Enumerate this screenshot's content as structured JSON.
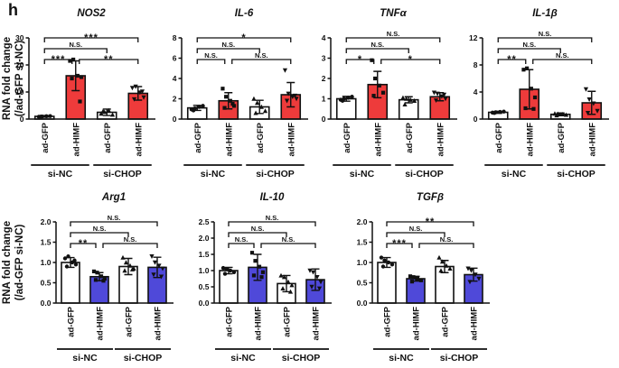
{
  "panel_label": "h",
  "row_ylabel": {
    "line1": "RNA fold change",
    "line2": "(/ad-GFP si-NC)"
  },
  "x_axis": {
    "bar_labels": [
      "ad-GFP",
      "ad-HIMF",
      "ad-GFP",
      "ad-HIMF"
    ],
    "group_labels": [
      "si-NC",
      "si-CHOP"
    ]
  },
  "colors": {
    "control_bar": "#ffffff",
    "row1_accent": "#ee3b3b",
    "row2_accent": "#4f49d9",
    "axis": "#111111"
  },
  "markers": [
    "circle-icon",
    "square-icon",
    "triangle-up-icon",
    "triangle-down-icon"
  ],
  "chart_data": [
    {
      "type": "bar",
      "title": "NOS2",
      "row": 1,
      "ylabel": "RNA fold change (/ad-GFP si-NC)",
      "categories": [
        "ad-GFP si-NC",
        "ad-HIMF si-NC",
        "ad-GFP si-CHOP",
        "ad-HIMF si-CHOP"
      ],
      "values": [
        1.0,
        16.0,
        2.5,
        9.5
      ],
      "errors": [
        0.3,
        5.5,
        1.2,
        2.5
      ],
      "points": [
        [
          0.85,
          0.95,
          1.05,
          1.1,
          0.9
        ],
        [
          21.5,
          22,
          16,
          15.5,
          15,
          6.5
        ],
        [
          2.0,
          2.6,
          3.2,
          1.6,
          2.9
        ],
        [
          11.5,
          12,
          9.8,
          8,
          7.3,
          10.2
        ]
      ],
      "bar_fills": [
        "#ffffff",
        "#ee3b3b",
        "#ffffff",
        "#ee3b3b"
      ],
      "ylim": [
        0,
        30
      ],
      "yticks": [
        0,
        10,
        20,
        30
      ],
      "ytick_labels": [
        "0",
        "10",
        "20",
        "30"
      ],
      "significance": [
        {
          "from": 0,
          "to": 1,
          "label": "***",
          "level": 1
        },
        {
          "from": 1,
          "to": 3,
          "label": "**",
          "level": 1
        },
        {
          "from": 0,
          "to": 2,
          "label": "N.S.",
          "level": 2
        },
        {
          "from": 0,
          "to": 3,
          "label": "***",
          "level": 3
        }
      ]
    },
    {
      "type": "bar",
      "title": "IL-6",
      "row": 1,
      "categories": [
        "ad-GFP si-NC",
        "ad-HIMF si-NC",
        "ad-GFP si-CHOP",
        "ad-HIMF si-CHOP"
      ],
      "values": [
        1.1,
        1.8,
        1.2,
        2.4
      ],
      "errors": [
        0.25,
        0.8,
        0.65,
        1.2
      ],
      "points": [
        [
          0.95,
          1.05,
          1.2,
          1.3,
          0.85
        ],
        [
          3.0,
          2.2,
          1.8,
          1.3,
          1.1,
          1.5
        ],
        [
          2.0,
          1.6,
          1.2,
          0.8,
          0.6
        ],
        [
          4.8,
          2.5,
          2.2,
          2.0,
          1.8,
          2.3
        ]
      ],
      "bar_fills": [
        "#ffffff",
        "#ee3b3b",
        "#ffffff",
        "#ee3b3b"
      ],
      "ylim": [
        0,
        8
      ],
      "yticks": [
        0,
        2,
        4,
        6,
        8
      ],
      "ytick_labels": [
        "0",
        "2",
        "4",
        "6",
        "8"
      ],
      "significance": [
        {
          "from": 0,
          "to": 1,
          "label": "N.S.",
          "level": 1
        },
        {
          "from": 1,
          "to": 3,
          "label": "N.S.",
          "level": 1
        },
        {
          "from": 0,
          "to": 2,
          "label": "N.S.",
          "level": 2
        },
        {
          "from": 0,
          "to": 3,
          "label": "*",
          "level": 3
        }
      ]
    },
    {
      "type": "bar",
      "title": "TNFα",
      "row": 1,
      "categories": [
        "ad-GFP si-NC",
        "ad-HIMF si-NC",
        "ad-GFP si-CHOP",
        "ad-HIMF si-CHOP"
      ],
      "values": [
        1.0,
        1.7,
        0.95,
        1.1
      ],
      "errors": [
        0.12,
        0.65,
        0.15,
        0.2
      ],
      "points": [
        [
          0.95,
          1.0,
          1.05,
          1.1,
          0.9
        ],
        [
          2.9,
          2.0,
          1.65,
          1.3,
          1.15
        ],
        [
          1.05,
          1.0,
          0.95,
          0.9,
          0.72
        ],
        [
          1.3,
          1.25,
          1.12,
          1.0,
          0.92,
          1.2
        ]
      ],
      "bar_fills": [
        "#ffffff",
        "#ee3b3b",
        "#ffffff",
        "#ee3b3b"
      ],
      "ylim": [
        0,
        4
      ],
      "yticks": [
        0,
        1,
        2,
        3,
        4
      ],
      "ytick_labels": [
        "0",
        "1",
        "2",
        "3",
        "4"
      ],
      "significance": [
        {
          "from": 0,
          "to": 1,
          "label": "*",
          "level": 1
        },
        {
          "from": 1,
          "to": 3,
          "label": "*",
          "level": 1
        },
        {
          "from": 0,
          "to": 2,
          "label": "N.S.",
          "level": 2
        },
        {
          "from": 0,
          "to": 3,
          "label": "N.S.",
          "level": 3
        }
      ]
    },
    {
      "type": "bar",
      "title": "IL-1β",
      "row": 1,
      "categories": [
        "ad-GFP si-NC",
        "ad-HIMF si-NC",
        "ad-GFP si-CHOP",
        "ad-HIMF si-CHOP"
      ],
      "values": [
        1.0,
        4.4,
        0.7,
        2.4
      ],
      "errors": [
        0.15,
        2.9,
        0.2,
        1.7
      ],
      "points": [
        [
          0.95,
          1.0,
          1.05,
          1.1,
          0.9
        ],
        [
          7.3,
          7.5,
          4.5,
          3.2,
          1.6,
          1.5
        ],
        [
          0.8,
          0.75,
          0.7,
          0.62,
          0.55
        ],
        [
          4.4,
          2.9,
          2.3,
          1.2,
          0.9
        ]
      ],
      "bar_fills": [
        "#ffffff",
        "#ee3b3b",
        "#ffffff",
        "#ee3b3b"
      ],
      "ylim": [
        0,
        12
      ],
      "yticks": [
        0,
        4,
        8,
        12
      ],
      "ytick_labels": [
        "0",
        "4",
        "8",
        "12"
      ],
      "significance": [
        {
          "from": 0,
          "to": 1,
          "label": "**",
          "level": 1
        },
        {
          "from": 1,
          "to": 3,
          "label": "N.S.",
          "level": 1
        },
        {
          "from": 0,
          "to": 2,
          "label": "N.S.",
          "level": 2
        },
        {
          "from": 0,
          "to": 3,
          "label": "N.S.",
          "level": 3
        }
      ]
    },
    {
      "type": "bar",
      "title": "Arg1",
      "row": 2,
      "ylabel": "RNA fold change (/ad-GFP si-NC)",
      "categories": [
        "ad-GFP si-NC",
        "ad-HIMF si-NC",
        "ad-GFP si-CHOP",
        "ad-HIMF si-CHOP"
      ],
      "values": [
        1.0,
        0.65,
        0.9,
        0.88
      ],
      "errors": [
        0.12,
        0.1,
        0.2,
        0.25
      ],
      "points": [
        [
          1.1,
          1.15,
          1.0,
          0.95,
          0.9,
          1.05
        ],
        [
          0.78,
          0.75,
          0.66,
          0.6,
          0.57,
          0.55
        ],
        [
          1.12,
          1.0,
          0.92,
          0.85,
          0.8,
          0.83
        ],
        [
          1.15,
          1.0,
          0.92,
          0.85,
          0.7,
          0.65
        ]
      ],
      "bar_fills": [
        "#ffffff",
        "#4f49d9",
        "#ffffff",
        "#4f49d9"
      ],
      "ylim": [
        0,
        2.0
      ],
      "yticks": [
        0,
        0.5,
        1.0,
        1.5,
        2.0
      ],
      "ytick_labels": [
        "0.0",
        "0.5",
        "1.0",
        "1.5",
        "2.0"
      ],
      "significance": [
        {
          "from": 0,
          "to": 1,
          "label": "**",
          "level": 1
        },
        {
          "from": 1,
          "to": 3,
          "label": "N.S.",
          "level": 1
        },
        {
          "from": 0,
          "to": 2,
          "label": "N.S.",
          "level": 2
        },
        {
          "from": 0,
          "to": 3,
          "label": "N.S.",
          "level": 3
        }
      ]
    },
    {
      "type": "bar",
      "title": "IL-10",
      "row": 2,
      "categories": [
        "ad-GFP si-NC",
        "ad-HIMF si-NC",
        "ad-GFP si-CHOP",
        "ad-HIMF si-CHOP"
      ],
      "values": [
        1.0,
        1.1,
        0.6,
        0.72
      ],
      "errors": [
        0.1,
        0.4,
        0.25,
        0.33
      ],
      "points": [
        [
          1.08,
          1.05,
          1.0,
          0.95,
          0.9
        ],
        [
          1.55,
          1.3,
          1.12,
          0.95,
          0.85,
          0.8
        ],
        [
          0.85,
          0.8,
          0.65,
          0.55,
          0.45,
          0.35
        ],
        [
          1.0,
          0.95,
          0.8,
          0.65,
          0.5,
          0.45
        ]
      ],
      "bar_fills": [
        "#ffffff",
        "#4f49d9",
        "#ffffff",
        "#4f49d9"
      ],
      "ylim": [
        0,
        2.5
      ],
      "yticks": [
        0,
        0.5,
        1.0,
        1.5,
        2.0,
        2.5
      ],
      "ytick_labels": [
        "0.0",
        "0.5",
        "1.0",
        "1.5",
        "2.0",
        "2.5"
      ],
      "significance": [
        {
          "from": 0,
          "to": 1,
          "label": "N.S.",
          "level": 1
        },
        {
          "from": 1,
          "to": 3,
          "label": "N.S.",
          "level": 1
        },
        {
          "from": 0,
          "to": 2,
          "label": "N.S.",
          "level": 2
        },
        {
          "from": 0,
          "to": 3,
          "label": "N.S.",
          "level": 3
        }
      ]
    },
    {
      "type": "bar",
      "title": "TGFβ",
      "row": 2,
      "categories": [
        "ad-GFP si-NC",
        "ad-HIMF si-NC",
        "ad-GFP si-CHOP",
        "ad-HIMF si-CHOP"
      ],
      "values": [
        1.0,
        0.6,
        0.9,
        0.7
      ],
      "errors": [
        0.12,
        0.06,
        0.15,
        0.16
      ],
      "points": [
        [
          1.12,
          1.05,
          1.0,
          0.95,
          0.9
        ],
        [
          0.66,
          0.64,
          0.6,
          0.56,
          0.53
        ],
        [
          1.12,
          1.02,
          0.92,
          0.85,
          0.8
        ],
        [
          0.85,
          0.8,
          0.7,
          0.6,
          0.52
        ]
      ],
      "bar_fills": [
        "#ffffff",
        "#4f49d9",
        "#ffffff",
        "#4f49d9"
      ],
      "ylim": [
        0,
        2.0
      ],
      "yticks": [
        0,
        0.5,
        1.0,
        1.5,
        2.0
      ],
      "ytick_labels": [
        "0.0",
        "0.5",
        "1.0",
        "1.5",
        "2.0"
      ],
      "significance": [
        {
          "from": 0,
          "to": 1,
          "label": "***",
          "level": 1
        },
        {
          "from": 1,
          "to": 3,
          "label": "N.S.",
          "level": 1
        },
        {
          "from": 0,
          "to": 2,
          "label": "N.S.",
          "level": 2
        },
        {
          "from": 0,
          "to": 3,
          "label": "**",
          "level": 3
        }
      ]
    }
  ]
}
